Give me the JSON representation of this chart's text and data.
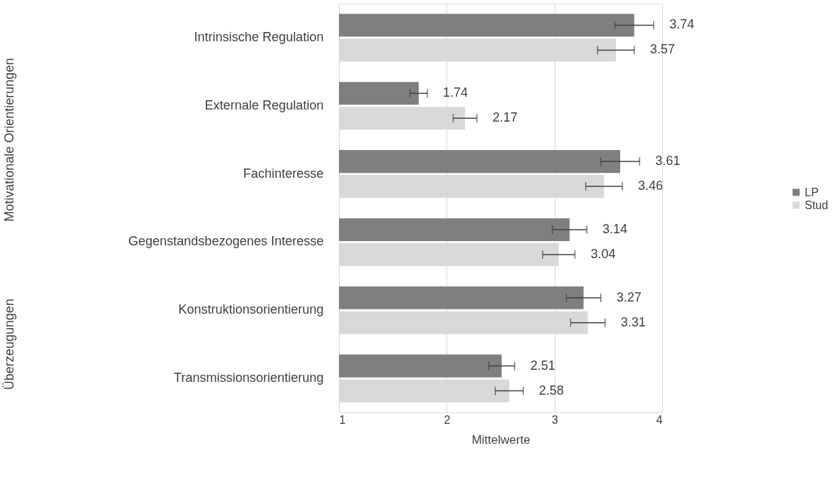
{
  "chart_data": {
    "type": "bar",
    "orientation": "horizontal",
    "xlabel": "Mittelwerte",
    "categories": [
      "Intrinsische Regulation",
      "Externale Regulation",
      "Fachinteresse",
      "Gegenstandsbezogenes Interesse",
      "Konstruktionsorientierung",
      "Transmissionsorientierung"
    ],
    "series": [
      {
        "name": "LP",
        "color": "#7f7f7f",
        "values": [
          3.74,
          1.74,
          3.61,
          3.14,
          3.27,
          2.51
        ],
        "errors": [
          0.18,
          0.08,
          0.18,
          0.16,
          0.16,
          0.12
        ]
      },
      {
        "name": "Stud",
        "color": "#d9d9d9",
        "values": [
          3.57,
          2.17,
          3.46,
          3.04,
          3.31,
          2.58
        ],
        "errors": [
          0.17,
          0.11,
          0.17,
          0.15,
          0.16,
          0.13
        ]
      }
    ],
    "xlim": [
      1,
      4
    ],
    "xticks": [
      1,
      2,
      3,
      4
    ],
    "grid": "x",
    "legend": "right",
    "data_labels": true,
    "annotations": [
      "Motivationale Orientierungen",
      "Überzeugungen"
    ]
  }
}
